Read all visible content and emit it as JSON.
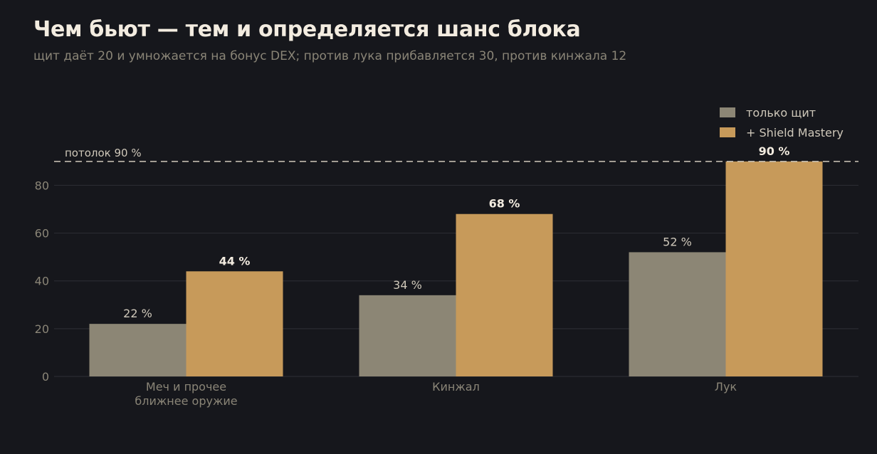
{
  "header": {
    "title": "Чем бьют — тем и определяется шанс блока",
    "subtitle": "щит даёт 20 и умножается на бонус DEX; против лука прибавляется 30, против кинжала 12"
  },
  "colors": {
    "background": "#16171c",
    "shield_only": "#8c8675",
    "with_mastery": "#c79a5a",
    "grid": "#2a2b31",
    "ceiling_line": "#cfc8ba"
  },
  "chart_data": {
    "type": "bar",
    "title": "Чем бьют — тем и определяется шанс блока",
    "subtitle": "щит даёт 20 и умножается на бонус DEX; против лука прибавляется 30, против кинжала 12",
    "categories": [
      [
        "Меч и прочее",
        "ближнее оружие"
      ],
      [
        "Кинжал"
      ],
      [
        "Лук"
      ]
    ],
    "series": [
      {
        "name": "только щит",
        "values": [
          22,
          34,
          52
        ],
        "labels": [
          "22 %",
          "34 %",
          "52 %"
        ],
        "color": "#8c8675",
        "label_bold": false
      },
      {
        "name": "+ Shield Mastery",
        "values": [
          44,
          68,
          90
        ],
        "labels": [
          "44 %",
          "68 %",
          "90 %"
        ],
        "color": "#c79a5a",
        "label_bold": true
      }
    ],
    "ylim": [
      0,
      90
    ],
    "yticks": [
      0,
      20,
      40,
      60,
      80
    ],
    "ceiling": {
      "value": 90,
      "label": "потолок 90 %"
    },
    "grid": true,
    "legend_position": "top-right",
    "xlabel": "",
    "ylabel": ""
  }
}
